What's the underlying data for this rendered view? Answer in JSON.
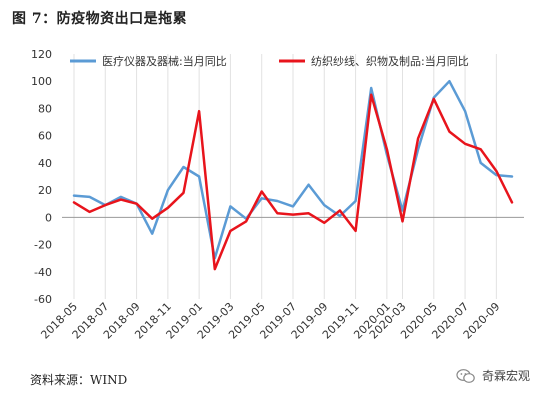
{
  "figure": {
    "title": "图 7：防疫物资出口是拖累",
    "source": "资料来源：WIND",
    "watermark": "奇霖宏观",
    "watermark_icon": "wechat-icon"
  },
  "chart_data": {
    "type": "line",
    "title": "",
    "xlabel": "",
    "ylabel": "",
    "ylim": [
      -60,
      120
    ],
    "yticks": [
      -60,
      -40,
      -20,
      0,
      20,
      40,
      60,
      80,
      100,
      120
    ],
    "grid": "vertical",
    "legend_position": "top",
    "x": [
      "2018-05",
      "2018-06",
      "2018-07",
      "2018-08",
      "2018-09",
      "2018-10",
      "2018-11",
      "2018-12",
      "2019-01",
      "2019-02",
      "2019-03",
      "2019-04",
      "2019-05",
      "2019-06",
      "2019-07",
      "2019-08",
      "2019-09",
      "2019-10",
      "2019-11",
      "2019-12",
      "2020-01",
      "2020-03",
      "2020-04",
      "2020-05",
      "2020-06",
      "2020-07",
      "2020-08",
      "2020-09",
      "2020-10"
    ],
    "xtick_labels": [
      "2018-05",
      "2018-07",
      "2018-09",
      "2018-11",
      "2019-01",
      "2019-03",
      "2019-05",
      "2019-07",
      "2019-09",
      "2019-11",
      "2020-01",
      "2020-03",
      "2020-05",
      "2020-07",
      "2020-09"
    ],
    "series": [
      {
        "name": "医疗仪器及器械:当月同比",
        "color": "#5b9bd5",
        "values": [
          16,
          15,
          9,
          15,
          10,
          -12,
          20,
          37,
          30,
          -30,
          8,
          -1,
          14,
          12,
          8,
          24,
          9,
          1,
          12,
          95,
          46,
          5,
          50,
          88,
          100,
          78,
          40,
          31,
          30
        ]
      },
      {
        "name": "纺织纱线、织物及制品:当月同比",
        "color": "#e8141c",
        "values": [
          11,
          4,
          9,
          13,
          10,
          -1,
          7,
          18,
          78,
          -38,
          -10,
          -3,
          19,
          3,
          2,
          3,
          -4,
          5,
          -10,
          90,
          50,
          -3,
          58,
          87,
          63,
          54,
          50,
          34,
          11
        ]
      }
    ]
  }
}
